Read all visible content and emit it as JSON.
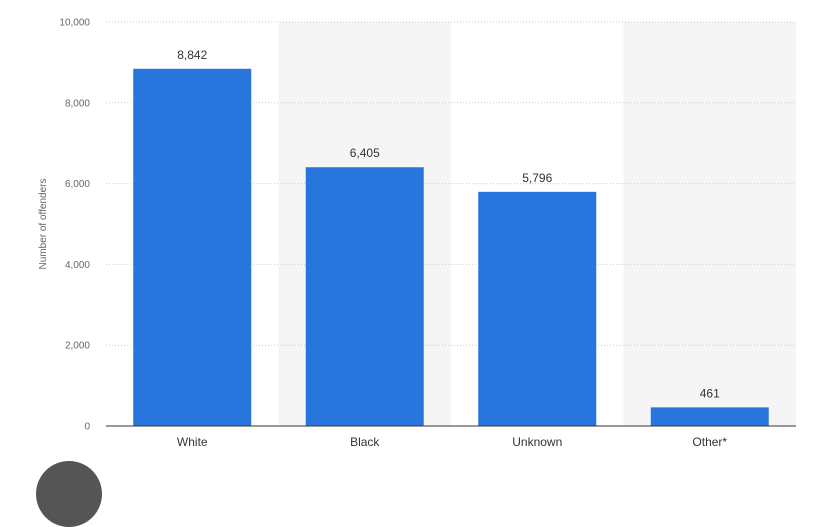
{
  "chart_data": {
    "type": "bar",
    "ylabel": "Number of offenders",
    "xlabel": "",
    "categories": [
      "White",
      "Black",
      "Unknown",
      "Other*"
    ],
    "values": [
      8842,
      6405,
      5796,
      461
    ],
    "value_labels": [
      "8,842",
      "6,405",
      "5,796",
      "461"
    ],
    "ylim": [
      0,
      10000
    ],
    "yticks": [
      0,
      2000,
      4000,
      6000,
      8000,
      10000
    ],
    "ytick_labels": [
      "0",
      "2,000",
      "4,000",
      "6,000",
      "8,000",
      "10,000"
    ],
    "grid": true,
    "bar_color": "#2876dd",
    "alternate_band_color": "#f5f5f5"
  },
  "colors": {
    "gridline": "#cccccc",
    "axis": "#333333",
    "avatar": "#555555"
  }
}
